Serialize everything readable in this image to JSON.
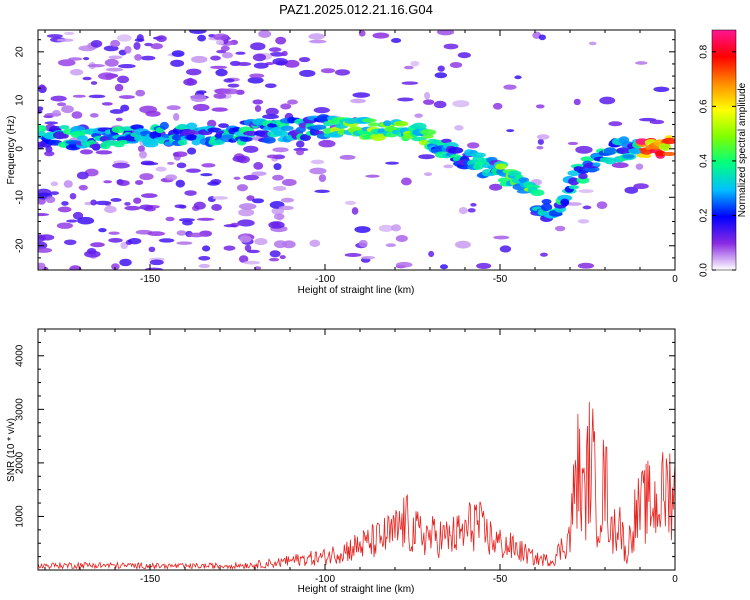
{
  "figure": {
    "title": "PAZ1.2025.012.21.16.G04"
  },
  "colors": {
    "snr_line": "#e8231f",
    "axis": "#000000",
    "background": "#ffffff"
  },
  "chart_data": [
    {
      "type": "heatmap",
      "title": "PAZ1.2025.012.21.16.G04",
      "xlabel": "Height of straight line (km)",
      "ylabel": "Frequency (Hz)",
      "xlim": [
        -182,
        0
      ],
      "ylim": [
        -25,
        24.5
      ],
      "x_ticks": [
        -150,
        -100,
        -50,
        0
      ],
      "y_ticks": [
        -20,
        -10,
        0,
        10,
        20
      ],
      "grid": false,
      "colorbar": {
        "label": "Normalized spectral amplitude",
        "range": [
          0,
          0.88
        ],
        "ticks": [
          0.0,
          0.2,
          0.4,
          0.6,
          0.8
        ],
        "colormap": [
          "#ffffff",
          "#8a2be2",
          "#0000ff",
          "#00bfff",
          "#00ff7f",
          "#7fff00",
          "#ffff00",
          "#ff8c00",
          "#ff0000",
          "#ff1493"
        ]
      },
      "ridge": {
        "x": [
          -180,
          -175,
          -170,
          -165,
          -155,
          -145,
          -135,
          -120,
          -110,
          -100,
          -90,
          -80,
          -75,
          -70,
          -60,
          -55,
          -50,
          -45,
          -40,
          -35,
          -30,
          -25,
          -20,
          -15,
          -10,
          -5,
          0
        ],
        "y": [
          2.5,
          2.5,
          2.0,
          2.0,
          2.5,
          3.0,
          3.0,
          3.5,
          4.0,
          4.5,
          4.5,
          4.0,
          3.5,
          2.0,
          -2.0,
          -3.5,
          -5.0,
          -7.0,
          -10.0,
          -14.0,
          -7.0,
          -4.0,
          -1.0,
          0.0,
          0.5,
          0.5,
          1.0
        ]
      }
    },
    {
      "type": "line",
      "xlabel": "Height of straight line (km)",
      "ylabel": "SNR (10 * v/v)",
      "xlim": [
        -182,
        0
      ],
      "ylim": [
        0,
        4500
      ],
      "x_ticks": [
        -150,
        -100,
        -50,
        0
      ],
      "y_ticks": [
        1000,
        2000,
        3000,
        4000
      ],
      "grid": false,
      "series": [
        {
          "color": "#e8231f",
          "x": [
            -182,
            -170,
            -160,
            -150,
            -140,
            -130,
            -120,
            -110,
            -100,
            -95,
            -90,
            -85,
            -80,
            -77,
            -75,
            -70,
            -65,
            -60,
            -57,
            -55,
            -50,
            -45,
            -40,
            -35,
            -30,
            -28,
            -26,
            -24,
            -22,
            -20,
            -18,
            -16,
            -14,
            -12,
            -10,
            -8,
            -6,
            -4,
            -2,
            0
          ],
          "y": [
            120,
            140,
            130,
            120,
            110,
            120,
            150,
            250,
            350,
            500,
            650,
            800,
            1000,
            1300,
            1000,
            900,
            850,
            1000,
            1350,
            1000,
            700,
            550,
            300,
            250,
            900,
            2800,
            1800,
            3200,
            1400,
            2500,
            900,
            1500,
            300,
            1300,
            1600,
            1800,
            1700,
            1900,
            2200,
            2100
          ]
        }
      ]
    }
  ]
}
